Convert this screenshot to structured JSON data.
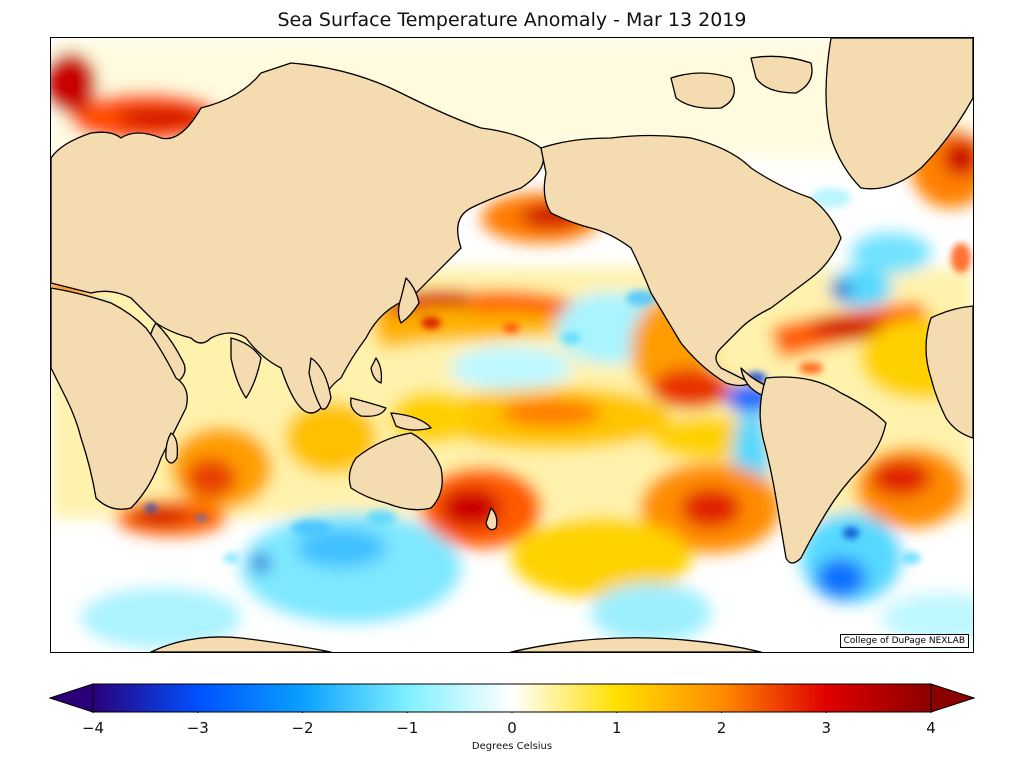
{
  "title": "Sea Surface Temperature Anomaly - Mar 13 2019",
  "credit": "College of DuPage NEXLAB",
  "colorbar": {
    "label": "Degrees Celsius",
    "min": -4,
    "max": 4,
    "extend": "both",
    "ticks": [
      "−4",
      "−3",
      "−2",
      "−1",
      "0",
      "1",
      "2",
      "3",
      "4"
    ],
    "colors": [
      "#2a007a",
      "#0050ff",
      "#0aa0ff",
      "#7ff0ff",
      "#ffffff",
      "#ffe000",
      "#ff8c00",
      "#e00000",
      "#8b0000"
    ]
  },
  "map": {
    "projection": "cylindrical",
    "land_color": "#f4dbb0",
    "ocean_base_color": "#ffffff"
  }
}
